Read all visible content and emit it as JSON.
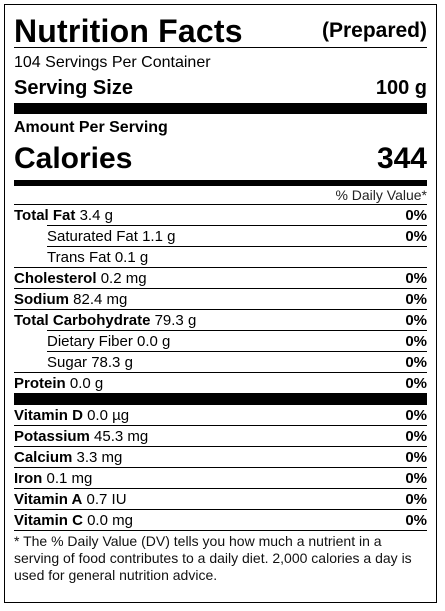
{
  "header": {
    "title": "Nutrition Facts",
    "prepared": "(Prepared)"
  },
  "servings_per_container": "104 Servings Per Container",
  "serving_size": {
    "label": "Serving Size",
    "value": "100 g"
  },
  "amount_per_serving": "Amount Per Serving",
  "calories": {
    "label": "Calories",
    "value": "344"
  },
  "daily_value_header": "% Daily Value*",
  "nutrients": [
    {
      "name": "Total Fat",
      "amount": "3.4 g",
      "dv": "0%"
    },
    {
      "name": "Saturated Fat",
      "amount": "1.1 g",
      "dv": "0%"
    },
    {
      "name": "Trans Fat",
      "amount": "0.1 g",
      "dv": ""
    },
    {
      "name": "Cholesterol",
      "amount": "0.2 mg",
      "dv": "0%"
    },
    {
      "name": "Sodium",
      "amount": "82.4 mg",
      "dv": "0%"
    },
    {
      "name": "Total Carbohydrate",
      "amount": "79.3 g",
      "dv": "0%"
    },
    {
      "name": "Dietary Fiber",
      "amount": "0.0 g",
      "dv": "0%"
    },
    {
      "name": "Sugar",
      "amount": "78.3 g",
      "dv": "0%"
    },
    {
      "name": "Protein",
      "amount": "0.0 g",
      "dv": "0%"
    }
  ],
  "vitamins": [
    {
      "name": "Vitamin D",
      "amount": "0.0 µg",
      "dv": "0%"
    },
    {
      "name": "Potassium",
      "amount": "45.3 mg",
      "dv": "0%"
    },
    {
      "name": "Calcium",
      "amount": "3.3 mg",
      "dv": "0%"
    },
    {
      "name": "Iron",
      "amount": "0.1 mg",
      "dv": "0%"
    },
    {
      "name": "Vitamin A",
      "amount": "0.7 IU",
      "dv": "0%"
    },
    {
      "name": "Vitamin C",
      "amount": "0.0 mg",
      "dv": "0%"
    }
  ],
  "footnote": "* The % Daily Value (DV) tells you how much a nutrient in a serving of food contributes to a daily diet. 2,000 calories a day is used for general nutrition advice."
}
